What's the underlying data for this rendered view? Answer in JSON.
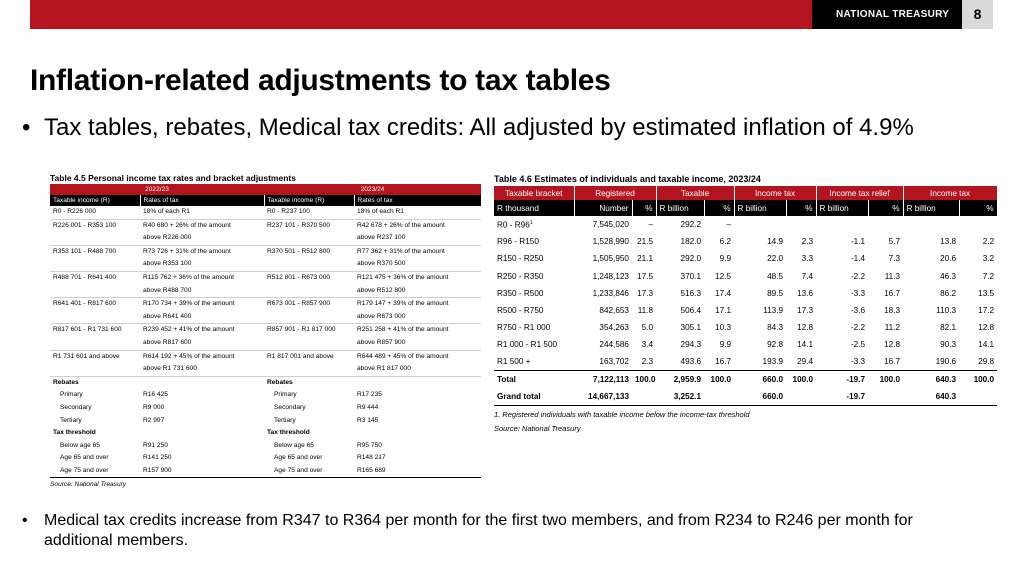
{
  "header": {
    "brand": "NATIONAL TREASURY",
    "page_number": "8",
    "colors": {
      "bar": "#b3141e",
      "brand_bg": "#000000",
      "page_bg": "#d9d9d9"
    }
  },
  "title": "Inflation-related adjustments to tax tables",
  "bullets": {
    "first": "Tax tables, rebates, Medical tax credits: All adjusted by estimated inflation of 4.9%",
    "second": "Medical tax credits increase from R347 to R364 per month for the first two members, and from R234 to R246 per month for additional members."
  },
  "table45": {
    "caption": "Table 4.5  Personal income tax rates and bracket adjustments",
    "years": [
      "2022/23",
      "2023/24"
    ],
    "headers": [
      "Taxable income (R)",
      "Rates of tax",
      "Taxable income (R)",
      "Rates of tax"
    ],
    "brackets": [
      {
        "inc1": "R0 - R226 000",
        "rate1": "18% of each R1",
        "inc2": "R0 - R237 100",
        "rate2": "18% of each R1"
      },
      {
        "inc1": "R226 001 - R353 100",
        "rate1": "R40 680 + 26% of the amount",
        "rate1b": "above R226 000",
        "inc2": "R237 101 - R370 500",
        "rate2": "R42 678 + 26% of the amount",
        "rate2b": "above R237 100"
      },
      {
        "inc1": "R353 101 - R488 700",
        "rate1": "R73 726 + 31% of the amount",
        "rate1b": "above R353 100",
        "inc2": "R370 501 - R512 800",
        "rate2": "R77 362 + 31% of the amount",
        "rate2b": "above R370 500"
      },
      {
        "inc1": "R488 701 - R641 400",
        "rate1": "R115 762 + 36% of the amount",
        "rate1b": "above R488 700",
        "inc2": "R512 801 - R673 000",
        "rate2": "R121 475 + 36% of the amount",
        "rate2b": "above R512 800"
      },
      {
        "inc1": "R641 401 - R817 600",
        "rate1": "R170 734 + 39% of the amount",
        "rate1b": "above R641 400",
        "inc2": "R673 001 - R857 900",
        "rate2": "R179 147 + 39% of the amount",
        "rate2b": "above R673 000"
      },
      {
        "inc1": "R817 601 - R1 731 600",
        "rate1": "R239 452 + 41% of the amount",
        "rate1b": "above R817 600",
        "inc2": "R857 901 - R1 817 000",
        "rate2": "R251 258 + 41% of the amount",
        "rate2b": "above R857 900"
      },
      {
        "inc1": "R1 731 601 and above",
        "rate1": "R614 192 + 45% of the amount",
        "rate1b": "above R1 731 600",
        "inc2": "R1 817 001 and above",
        "rate2": "R644 489 + 45% of the amount",
        "rate2b": "above R1 817 000"
      }
    ],
    "rebates_label": "Rebates",
    "rebates": [
      {
        "label": "Primary",
        "v1": "R16 425",
        "v2": "R17 235"
      },
      {
        "label": "Secondary",
        "v1": "R9 000",
        "v2": "R9 444"
      },
      {
        "label": "Tertiary",
        "v1": "R2 997",
        "v2": "R3 145"
      }
    ],
    "threshold_label": "Tax threshold",
    "thresholds": [
      {
        "label": "Below age 65",
        "v1": "R91 250",
        "v2": "R95 750"
      },
      {
        "label": "Age 65 and over",
        "v1": "R141 250",
        "v2": "R148 217"
      },
      {
        "label": "Age 75 and over",
        "v1": "R157 900",
        "v2": "R165 689"
      }
    ],
    "source": "Source: National Treasury"
  },
  "table46": {
    "caption": "Table 4.6  Estimates of individuals and taxable income, 2023/24",
    "groups": [
      "Taxable bracket",
      "Registered",
      "Taxable",
      "Income tax",
      "Income tax relief",
      "Income tax"
    ],
    "subheaders": [
      "R thousand",
      "Number",
      "%",
      "R billion",
      "%",
      "R billion",
      "%",
      "R billion",
      "%",
      "R billion",
      "%"
    ],
    "rows": [
      {
        "bracket": "R0 - R96",
        "sup": "1",
        "cells": [
          "7,545,020",
          "–",
          "292.2",
          "–",
          "",
          "",
          "",
          "",
          "",
          ""
        ]
      },
      {
        "bracket": "R96  - R150",
        "cells": [
          "1,528,990",
          "21.5",
          "182.0",
          "6.2",
          "14.9",
          "2.3",
          "-1.1",
          "5.7",
          "13.8",
          "2.2"
        ]
      },
      {
        "bracket": "R150 - R250",
        "cells": [
          "1,505,950",
          "21.1",
          "292.0",
          "9.9",
          "22.0",
          "3.3",
          "-1.4",
          "7.3",
          "20.6",
          "3.2"
        ]
      },
      {
        "bracket": "R250 - R350",
        "cells": [
          "1,248,123",
          "17.5",
          "370.1",
          "12.5",
          "48.5",
          "7.4",
          "-2.2",
          "11.3",
          "46.3",
          "7.2"
        ]
      },
      {
        "bracket": "R350 - R500",
        "cells": [
          "1,233,846",
          "17.3",
          "516.3",
          "17.4",
          "89.5",
          "13.6",
          "-3.3",
          "16.7",
          "86.2",
          "13.5"
        ]
      },
      {
        "bracket": "R500 - R750",
        "cells": [
          "842,653",
          "11.8",
          "506.4",
          "17.1",
          "113.9",
          "17.3",
          "-3.6",
          "18.3",
          "110.3",
          "17.2"
        ]
      },
      {
        "bracket": "R750 - R1 000",
        "cells": [
          "354,263",
          "5.0",
          "305.1",
          "10.3",
          "84.3",
          "12.8",
          "-2.2",
          "11.2",
          "82.1",
          "12.8"
        ]
      },
      {
        "bracket": "R1 000 - R1 500",
        "cells": [
          "244,586",
          "3.4",
          "294.3",
          "9.9",
          "92.8",
          "14.1",
          "-2.5",
          "12.8",
          "90.3",
          "14.1"
        ]
      },
      {
        "bracket": "R1 500 +",
        "cells": [
          "163,702",
          "2.3",
          "493.6",
          "16.7",
          "193.9",
          "29.4",
          "-3.3",
          "16.7",
          "190.6",
          "29.8"
        ]
      }
    ],
    "total": {
      "bracket": "Total",
      "cells": [
        "7,122,113",
        "100.0",
        "2,959.9",
        "100.0",
        "660.0",
        "100.0",
        "-19.7",
        "100.0",
        "640.3",
        "100.0"
      ]
    },
    "grand_total": {
      "bracket": "Grand total",
      "cells": [
        "14,667,133",
        "",
        "3,252.1",
        "",
        "660.0",
        "",
        "-19.7",
        "",
        "640.3",
        ""
      ]
    },
    "note": "1. Registered individuals with taxable income below the income-tax threshold",
    "source": "Source: National Treasury"
  }
}
